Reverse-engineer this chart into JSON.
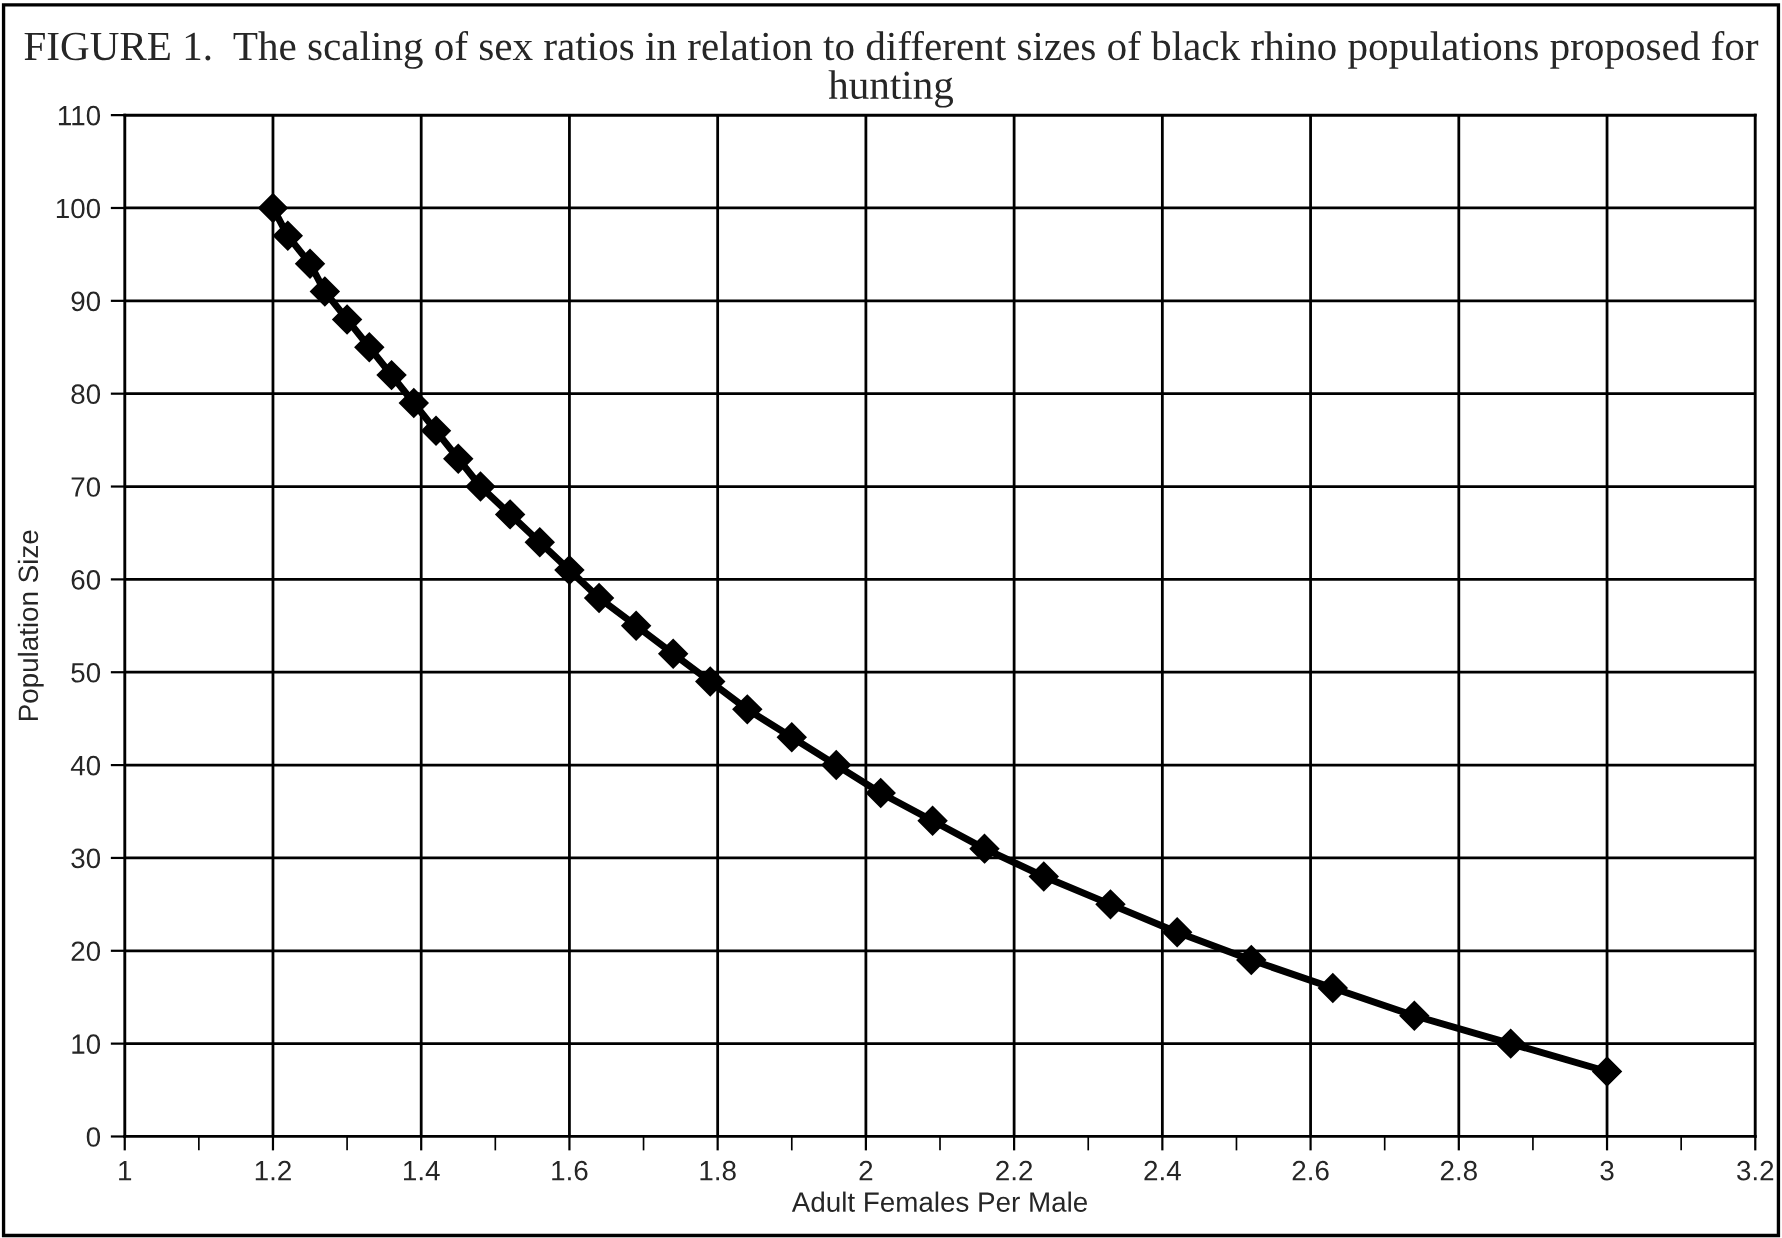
{
  "chart_data": {
    "type": "line",
    "title": "FIGURE 1.  The scaling of sex ratios in relation to different sizes of black rhino populations proposed for hunting",
    "xlabel": "Adult Females Per Male",
    "ylabel": "Population Size",
    "x": [
      1.2,
      1.22,
      1.25,
      1.27,
      1.3,
      1.33,
      1.36,
      1.39,
      1.42,
      1.45,
      1.48,
      1.52,
      1.56,
      1.6,
      1.64,
      1.69,
      1.74,
      1.79,
      1.84,
      1.9,
      1.96,
      2.02,
      2.09,
      2.16,
      2.24,
      2.33,
      2.42,
      2.52,
      2.63,
      2.74,
      2.87,
      3.0
    ],
    "series": [
      {
        "color": "#000000",
        "values": [
          100,
          97,
          94,
          91,
          88,
          85,
          82,
          79,
          76,
          73,
          70,
          67,
          64,
          61,
          58,
          55,
          52,
          49,
          46,
          43,
          40,
          37,
          34,
          31,
          28,
          25,
          22,
          19,
          16,
          13,
          10,
          7
        ]
      }
    ],
    "xlim": [
      1,
      3.2
    ],
    "ylim": [
      0,
      110
    ],
    "xticks": [
      1,
      {
        "value": 1.1,
        "label": null
      },
      1.2,
      {
        "value": 1.3,
        "label": null
      },
      1.4,
      {
        "value": 1.5,
        "label": null
      },
      1.6,
      {
        "value": 1.7,
        "label": null
      },
      1.8,
      {
        "value": 1.9,
        "label": null
      },
      2,
      {
        "value": 2.1,
        "label": null
      },
      2.2,
      {
        "value": 2.3,
        "label": null
      },
      2.4,
      {
        "value": 2.5,
        "label": null
      },
      2.6,
      {
        "value": 2.7,
        "label": null
      },
      2.8,
      {
        "value": 2.9,
        "label": null
      },
      3,
      {
        "value": 3.1,
        "label": null
      },
      3.2
    ],
    "yticks": [
      0,
      10,
      20,
      30,
      40,
      50,
      60,
      70,
      80,
      90,
      100,
      110
    ],
    "grid": true,
    "marker": "diamond",
    "line_style": "solid"
  }
}
